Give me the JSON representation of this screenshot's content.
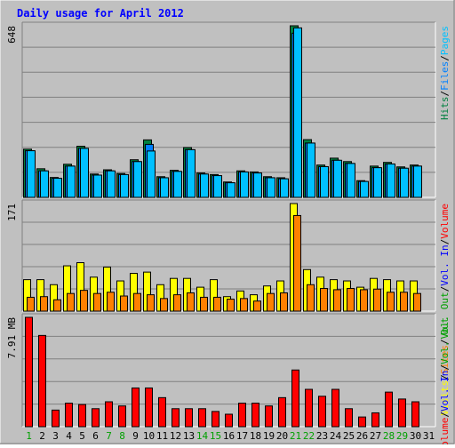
{
  "chart_data": {
    "type": "bar",
    "title": "Daily usage for April 2012",
    "x": [
      1,
      2,
      3,
      4,
      5,
      6,
      7,
      8,
      9,
      10,
      11,
      12,
      13,
      14,
      15,
      16,
      17,
      18,
      19,
      20,
      21,
      22,
      23,
      24,
      25,
      26,
      27,
      28,
      29,
      30,
      31
    ],
    "weekend_days": [
      1,
      7,
      8,
      14,
      15,
      21,
      22,
      28,
      29
    ],
    "colors": {
      "hits": "#008040",
      "files": "#0080ff",
      "pages": "#00c0ff",
      "visits": "#ffff00",
      "sites": "#ff8000",
      "kbytes": "#ff0000",
      "kbytes_in": "#0000ff",
      "kbytes_out": "#00a000",
      "day_label": "#000000",
      "weekend_label": "#00a000",
      "plot_bg": "#c0c0c0",
      "title": "#0000ff"
    },
    "panels": [
      {
        "id": "hits",
        "max_label": "648",
        "ymax": 648,
        "legend": [
          "Hits",
          "/",
          "Files",
          "/",
          "Pages"
        ],
        "legend_colors": [
          "#008040",
          "#000000",
          "#0080ff",
          "#000000",
          "#00c0ff"
        ],
        "series": [
          {
            "name": "Hits",
            "color": "#008040",
            "values": [
              182,
              108,
              75,
              125,
              193,
              88,
              104,
              90,
              142,
              217,
              78,
              102,
              188,
              92,
              86,
              58,
              100,
              96,
              78,
              74,
              648,
              218,
              122,
              148,
              135,
              63,
              118,
              132,
              115,
              122,
              0
            ]
          },
          {
            "name": "Files",
            "color": "#0080ff",
            "values": [
              176,
              100,
              72,
              118,
              185,
              84,
              100,
              86,
              135,
              200,
              74,
              98,
              180,
              88,
              82,
              55,
              96,
              92,
              74,
              70,
              620,
              205,
              116,
              140,
              128,
              60,
              112,
              126,
              110,
              118,
              0
            ]
          },
          {
            "name": "Pages",
            "color": "#00c0ff",
            "values": [
              176,
              100,
              72,
              118,
              185,
              84,
              100,
              86,
              135,
              175,
              74,
              98,
              180,
              88,
              82,
              55,
              96,
              92,
              74,
              70,
              640,
              205,
              116,
              140,
              128,
              60,
              112,
              126,
              110,
              118,
              0
            ]
          }
        ]
      },
      {
        "id": "visits",
        "max_label": "171",
        "ymax": 171,
        "legend": [
          "Visits",
          "/",
          "Sites",
          "/",
          "Vol. Out",
          "/",
          "Vol. In",
          "/",
          "Volume"
        ],
        "legend_colors": [
          "#ffff00",
          "#000000",
          "#ff8000",
          "#000000",
          "#00a000",
          "#000000",
          "#0000ff",
          "#000000",
          "#ff0000"
        ],
        "series": [
          {
            "name": "Visits",
            "color": "#ffff00",
            "values": [
              50,
              50,
              42,
              72,
              77,
              54,
              70,
              48,
              60,
              62,
              42,
              52,
              52,
              38,
              50,
              23,
              32,
              26,
              40,
              48,
              171,
              66,
              54,
              50,
              48,
              38,
              52,
              50,
              48,
              48,
              0
            ]
          },
          {
            "name": "Sites",
            "color": "#ff8000",
            "values": [
              22,
              23,
              18,
              28,
              33,
              28,
              30,
              24,
              28,
              26,
              20,
              26,
              29,
              22,
              22,
              19,
              20,
              16,
              28,
              29,
              152,
              42,
              36,
              34,
              36,
              34,
              35,
              30,
              30,
              28,
              0
            ]
          }
        ]
      },
      {
        "id": "volume",
        "max_label": "7.91 MB",
        "ymax": 7.91,
        "legend": [
          "Volume",
          "/",
          "Vol. In",
          "/",
          "Vol. Out"
        ],
        "legend_colors": [
          "#ff0000",
          "#000000",
          "#0000ff",
          "#000000",
          "#00a000"
        ],
        "series": [
          {
            "name": "Volume",
            "color": "#ff0000",
            "values": [
              7.91,
              6.6,
              1.2,
              1.7,
              1.6,
              1.3,
              1.8,
              1.5,
              2.8,
              2.8,
              2.1,
              1.3,
              1.3,
              1.3,
              1.1,
              0.9,
              1.7,
              1.7,
              1.5,
              2.1,
              4.1,
              2.7,
              2.2,
              2.7,
              1.3,
              0.7,
              1.0,
              2.5,
              2.0,
              1.8,
              0
            ]
          }
        ]
      }
    ]
  }
}
